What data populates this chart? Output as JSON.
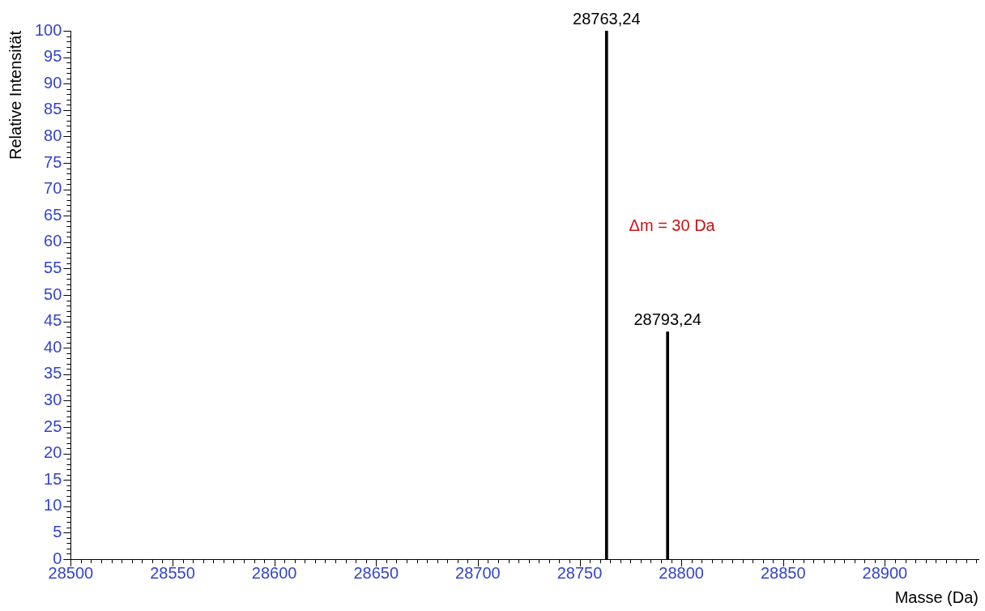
{
  "chart_data": {
    "type": "bar",
    "xlabel": "Masse (Da)",
    "ylabel": "Relative Intensität",
    "x": [
      28763.24,
      28793.24
    ],
    "series": [
      {
        "color": "#000000",
        "values": [
          100,
          43
        ]
      }
    ],
    "annotations": [
      {
        "text": "28763,24",
        "x": 28763.24,
        "y": 100
      },
      {
        "text": "28793,24",
        "x": 28793.24,
        "y": 43
      },
      "Δm = 30 Da"
    ],
    "xlim": [
      28500,
      28946
    ],
    "ylim": [
      0,
      100
    ],
    "xticks": [
      28500,
      {
        "value": 28505,
        "label": null
      },
      {
        "value": 28510,
        "label": null
      },
      {
        "value": 28515,
        "label": null
      },
      {
        "value": 28520,
        "label": null
      },
      {
        "value": 28525,
        "label": null
      },
      {
        "value": 28530,
        "label": null
      },
      {
        "value": 28535,
        "label": null
      },
      {
        "value": 28540,
        "label": null
      },
      {
        "value": 28545,
        "label": null
      },
      28550,
      {
        "value": 28555,
        "label": null
      },
      {
        "value": 28560,
        "label": null
      },
      {
        "value": 28565,
        "label": null
      },
      {
        "value": 28570,
        "label": null
      },
      {
        "value": 28575,
        "label": null
      },
      {
        "value": 28580,
        "label": null
      },
      {
        "value": 28585,
        "label": null
      },
      {
        "value": 28590,
        "label": null
      },
      {
        "value": 28595,
        "label": null
      },
      28600,
      {
        "value": 28605,
        "label": null
      },
      {
        "value": 28610,
        "label": null
      },
      {
        "value": 28615,
        "label": null
      },
      {
        "value": 28620,
        "label": null
      },
      {
        "value": 28625,
        "label": null
      },
      {
        "value": 28630,
        "label": null
      },
      {
        "value": 28635,
        "label": null
      },
      {
        "value": 28640,
        "label": null
      },
      {
        "value": 28645,
        "label": null
      },
      28650,
      {
        "value": 28655,
        "label": null
      },
      {
        "value": 28660,
        "label": null
      },
      {
        "value": 28665,
        "label": null
      },
      {
        "value": 28670,
        "label": null
      },
      {
        "value": 28675,
        "label": null
      },
      {
        "value": 28680,
        "label": null
      },
      {
        "value": 28685,
        "label": null
      },
      {
        "value": 28690,
        "label": null
      },
      {
        "value": 28695,
        "label": null
      },
      28700,
      {
        "value": 28705,
        "label": null
      },
      {
        "value": 28710,
        "label": null
      },
      {
        "value": 28715,
        "label": null
      },
      {
        "value": 28720,
        "label": null
      },
      {
        "value": 28725,
        "label": null
      },
      {
        "value": 28730,
        "label": null
      },
      {
        "value": 28735,
        "label": null
      },
      {
        "value": 28740,
        "label": null
      },
      {
        "value": 28745,
        "label": null
      },
      28750,
      {
        "value": 28755,
        "label": null
      },
      {
        "value": 28760,
        "label": null
      },
      {
        "value": 28765,
        "label": null
      },
      {
        "value": 28770,
        "label": null
      },
      {
        "value": 28775,
        "label": null
      },
      {
        "value": 28780,
        "label": null
      },
      {
        "value": 28785,
        "label": null
      },
      {
        "value": 28790,
        "label": null
      },
      {
        "value": 28795,
        "label": null
      },
      28800,
      {
        "value": 28805,
        "label": null
      },
      {
        "value": 28810,
        "label": null
      },
      {
        "value": 28815,
        "label": null
      },
      {
        "value": 28820,
        "label": null
      },
      {
        "value": 28825,
        "label": null
      },
      {
        "value": 28830,
        "label": null
      },
      {
        "value": 28835,
        "label": null
      },
      {
        "value": 28840,
        "label": null
      },
      {
        "value": 28845,
        "label": null
      },
      28850,
      {
        "value": 28855,
        "label": null
      },
      {
        "value": 28860,
        "label": null
      },
      {
        "value": 28865,
        "label": null
      },
      {
        "value": 28870,
        "label": null
      },
      {
        "value": 28875,
        "label": null
      },
      {
        "value": 28880,
        "label": null
      },
      {
        "value": 28885,
        "label": null
      },
      {
        "value": 28890,
        "label": null
      },
      {
        "value": 28895,
        "label": null
      },
      28900,
      {
        "value": 28905,
        "label": null
      },
      {
        "value": 28910,
        "label": null
      },
      {
        "value": 28915,
        "label": null
      },
      {
        "value": 28920,
        "label": null
      },
      {
        "value": 28925,
        "label": null
      },
      {
        "value": 28930,
        "label": null
      },
      {
        "value": 28935,
        "label": null
      },
      {
        "value": 28940,
        "label": null
      },
      {
        "value": 28945,
        "label": null
      }
    ],
    "yticks": [
      0,
      {
        "value": 1,
        "label": null
      },
      {
        "value": 2,
        "label": null
      },
      {
        "value": 3,
        "label": null
      },
      {
        "value": 4,
        "label": null
      },
      5,
      {
        "value": 6,
        "label": null
      },
      {
        "value": 7,
        "label": null
      },
      {
        "value": 8,
        "label": null
      },
      {
        "value": 9,
        "label": null
      },
      10,
      {
        "value": 11,
        "label": null
      },
      {
        "value": 12,
        "label": null
      },
      {
        "value": 13,
        "label": null
      },
      {
        "value": 14,
        "label": null
      },
      15,
      {
        "value": 16,
        "label": null
      },
      {
        "value": 17,
        "label": null
      },
      {
        "value": 18,
        "label": null
      },
      {
        "value": 19,
        "label": null
      },
      20,
      {
        "value": 21,
        "label": null
      },
      {
        "value": 22,
        "label": null
      },
      {
        "value": 23,
        "label": null
      },
      {
        "value": 24,
        "label": null
      },
      25,
      {
        "value": 26,
        "label": null
      },
      {
        "value": 27,
        "label": null
      },
      {
        "value": 28,
        "label": null
      },
      {
        "value": 29,
        "label": null
      },
      30,
      {
        "value": 31,
        "label": null
      },
      {
        "value": 32,
        "label": null
      },
      {
        "value": 33,
        "label": null
      },
      {
        "value": 34,
        "label": null
      },
      35,
      {
        "value": 36,
        "label": null
      },
      {
        "value": 37,
        "label": null
      },
      {
        "value": 38,
        "label": null
      },
      {
        "value": 39,
        "label": null
      },
      40,
      {
        "value": 41,
        "label": null
      },
      {
        "value": 42,
        "label": null
      },
      {
        "value": 43,
        "label": null
      },
      {
        "value": 44,
        "label": null
      },
      45,
      {
        "value": 46,
        "label": null
      },
      {
        "value": 47,
        "label": null
      },
      {
        "value": 48,
        "label": null
      },
      {
        "value": 49,
        "label": null
      },
      50,
      {
        "value": 51,
        "label": null
      },
      {
        "value": 52,
        "label": null
      },
      {
        "value": 53,
        "label": null
      },
      {
        "value": 54,
        "label": null
      },
      55,
      {
        "value": 56,
        "label": null
      },
      {
        "value": 57,
        "label": null
      },
      {
        "value": 58,
        "label": null
      },
      {
        "value": 59,
        "label": null
      },
      60,
      {
        "value": 61,
        "label": null
      },
      {
        "value": 62,
        "label": null
      },
      {
        "value": 63,
        "label": null
      },
      {
        "value": 64,
        "label": null
      },
      65,
      {
        "value": 66,
        "label": null
      },
      {
        "value": 67,
        "label": null
      },
      {
        "value": 68,
        "label": null
      },
      {
        "value": 69,
        "label": null
      },
      70,
      {
        "value": 71,
        "label": null
      },
      {
        "value": 72,
        "label": null
      },
      {
        "value": 73,
        "label": null
      },
      {
        "value": 74,
        "label": null
      },
      75,
      {
        "value": 76,
        "label": null
      },
      {
        "value": 77,
        "label": null
      },
      {
        "value": 78,
        "label": null
      },
      {
        "value": 79,
        "label": null
      },
      80,
      {
        "value": 81,
        "label": null
      },
      {
        "value": 82,
        "label": null
      },
      {
        "value": 83,
        "label": null
      },
      {
        "value": 84,
        "label": null
      },
      85,
      {
        "value": 86,
        "label": null
      },
      {
        "value": 87,
        "label": null
      },
      {
        "value": 88,
        "label": null
      },
      {
        "value": 89,
        "label": null
      },
      90,
      {
        "value": 91,
        "label": null
      },
      {
        "value": 92,
        "label": null
      },
      {
        "value": 93,
        "label": null
      },
      {
        "value": 94,
        "label": null
      },
      95,
      {
        "value": 96,
        "label": null
      },
      {
        "value": 97,
        "label": null
      },
      {
        "value": 98,
        "label": null
      },
      {
        "value": 99,
        "label": null
      },
      100
    ]
  }
}
